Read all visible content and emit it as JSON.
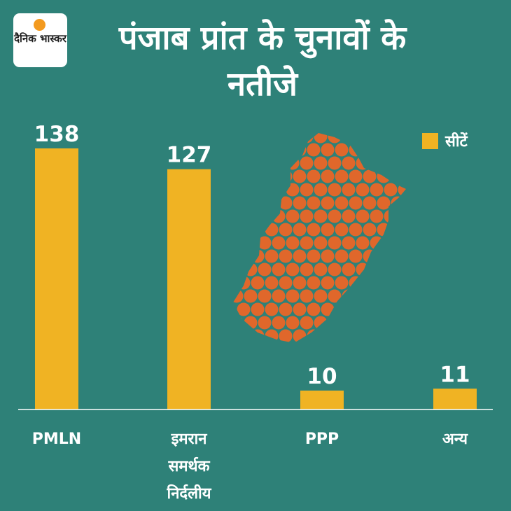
{
  "logo": {
    "text": "दैनिक भास्कर",
    "name": "dainik-bhaskar-logo"
  },
  "title": "पंजाब प्रांत के चुनावों के नतीजे",
  "colors": {
    "background": "#2e8178",
    "bar": "#f0b323",
    "map": "#e0672b",
    "axis": "#ffffff"
  },
  "map": {
    "name": "punjab-province-map-icon"
  },
  "chart_data": {
    "type": "bar",
    "categories": [
      "PMLN",
      "इमरान समर्थक निर्दलीय",
      "PPP",
      "अन्य"
    ],
    "category_lines": [
      [
        "PMLN"
      ],
      [
        "इमरान",
        "समर्थक",
        "निर्दलीय"
      ],
      [
        "PPP"
      ],
      [
        "अन्य"
      ]
    ],
    "series": [
      {
        "name": "सीटें",
        "values": [
          138,
          127,
          10,
          11
        ]
      }
    ],
    "data_labels": [
      "138",
      "127",
      "10",
      "11"
    ],
    "legend_position": "top-right",
    "grid": false
  }
}
